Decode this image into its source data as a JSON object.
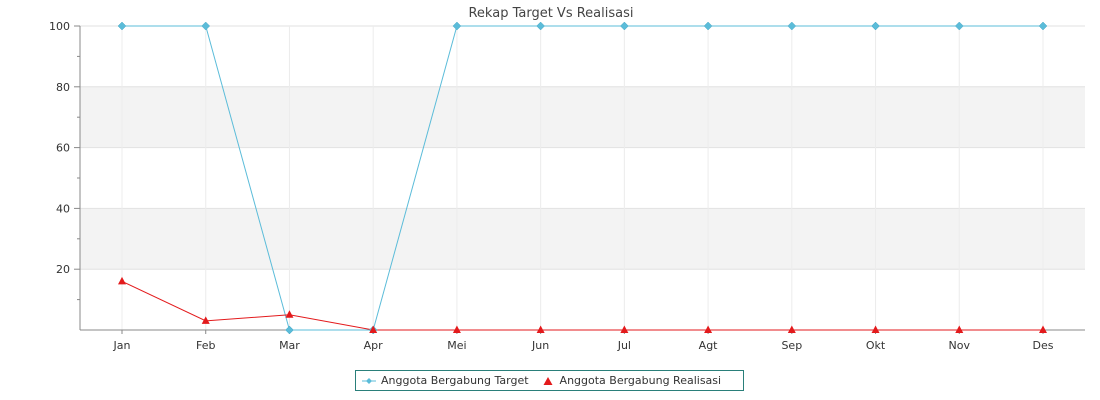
{
  "chart_data": {
    "type": "line",
    "title": "Rekap Target Vs Realisasi",
    "xlabel": "",
    "ylabel": "",
    "categories": [
      "Jan",
      "Feb",
      "Mar",
      "Apr",
      "Mei",
      "Jun",
      "Jul",
      "Agt",
      "Sep",
      "Okt",
      "Nov",
      "Des"
    ],
    "ylim": [
      0,
      100
    ],
    "yticks": [
      "100",
      "80",
      "60",
      "40",
      "20"
    ],
    "grid": "horizontal bands",
    "legend_position": "bottom-center",
    "series": [
      {
        "name": "Anggota Bergabung Target",
        "color": "#5bbcd9",
        "marker": "diamond",
        "values": [
          100,
          100,
          0,
          0,
          100,
          100,
          100,
          100,
          100,
          100,
          100,
          100
        ]
      },
      {
        "name": "Anggota Bergabung Realisasi",
        "color": "#e31a1c",
        "marker": "triangle",
        "values": [
          16,
          3,
          5,
          0,
          0,
          0,
          0,
          0,
          0,
          0,
          0,
          0
        ]
      }
    ]
  }
}
